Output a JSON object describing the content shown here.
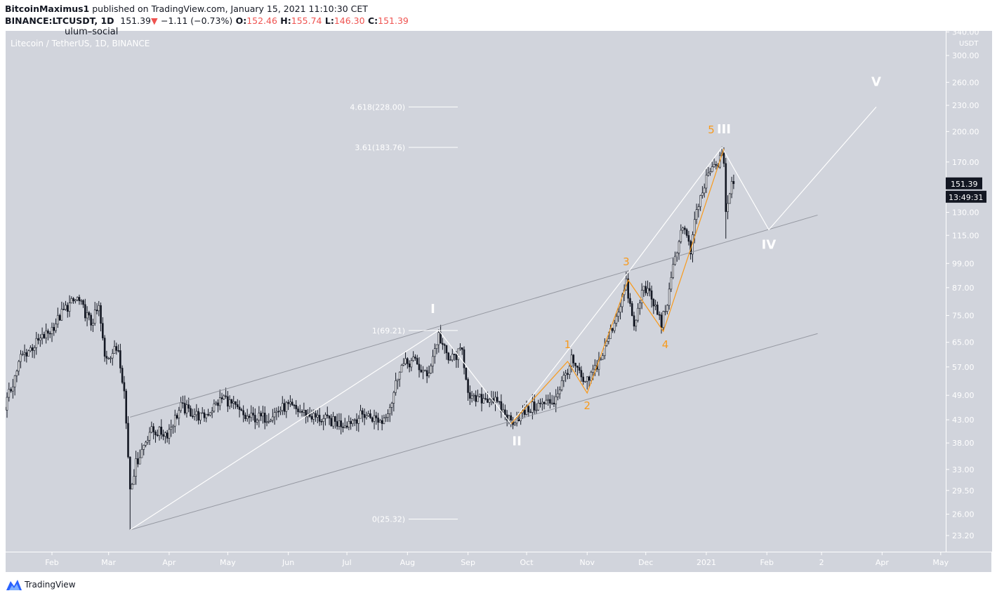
{
  "header": {
    "publisher": "BitcoinMaximus1",
    "published_text": "published on TradingView.com, January 15, 2021 11:10:30 CET",
    "symbol": "BINANCE:LTCUSDT, 1D",
    "last": "151.39",
    "change": "−1.11 (−0.73%)",
    "o_label": "O:",
    "o": "152.46",
    "h_label": "H:",
    "h": "155.74",
    "l_label": "L:",
    "l": "146.30",
    "c_label": "C:",
    "c": "151.39",
    "down_color": "#ef5350"
  },
  "watermark": "ulum–social",
  "chart_subtitle": "Litecoin / TetherUS, 1D, BINANCE",
  "price_axis": {
    "unit": "USDT",
    "ticks": [
      "340.00",
      "300.00",
      "260.00",
      "230.00",
      "200.00",
      "170.00",
      "130.00",
      "115.00",
      "99.00",
      "87.00",
      "75.00",
      "65.00",
      "57.00",
      "49.00",
      "43.00",
      "38.00",
      "33.00",
      "29.50",
      "26.00",
      "23.20"
    ],
    "current_price": "151.39",
    "countdown": "13:49:31"
  },
  "time_axis": {
    "ticks": [
      {
        "label": "Feb",
        "date": "2020-02-01"
      },
      {
        "label": "Mar",
        "date": "2020-03-01"
      },
      {
        "label": "Apr",
        "date": "2020-04-01"
      },
      {
        "label": "May",
        "date": "2020-05-01"
      },
      {
        "label": "Jun",
        "date": "2020-06-01"
      },
      {
        "label": "Jul",
        "date": "2020-07-01"
      },
      {
        "label": "Aug",
        "date": "2020-08-01"
      },
      {
        "label": "Sep",
        "date": "2020-09-01"
      },
      {
        "label": "Oct",
        "date": "2020-10-01"
      },
      {
        "label": "Nov",
        "date": "2020-11-01"
      },
      {
        "label": "Dec",
        "date": "2020-12-01"
      },
      {
        "label": "2021",
        "date": "2021-01-01"
      },
      {
        "label": "Feb",
        "date": "2021-02-01"
      },
      {
        "label": "2",
        "date": "2021-03-01"
      },
      {
        "label": "Apr",
        "date": "2021-04-01"
      },
      {
        "label": "May",
        "date": "2021-05-01"
      }
    ]
  },
  "chart_data": {
    "type": "candlestick",
    "scale": "log",
    "ylim": [
      22,
      345
    ],
    "xlim": [
      "2020-01-08",
      "2021-05-02"
    ],
    "grid": false,
    "up_color": "#ffffff",
    "down_color": "#131722",
    "approx_close_path": [
      [
        "2020-01-08",
        46
      ],
      [
        "2020-01-16",
        60
      ],
      [
        "2020-01-31",
        69
      ],
      [
        "2020-02-08",
        78
      ],
      [
        "2020-02-14",
        82
      ],
      [
        "2020-02-21",
        72
      ],
      [
        "2020-02-25",
        78
      ],
      [
        "2020-02-28",
        60
      ],
      [
        "2020-03-06",
        63
      ],
      [
        "2020-03-09",
        50
      ],
      [
        "2020-03-12",
        30
      ],
      [
        "2020-03-15",
        34
      ],
      [
        "2020-03-22",
        40.5
      ],
      [
        "2020-03-31",
        40
      ],
      [
        "2020-04-07",
        46
      ],
      [
        "2020-04-18",
        43.5
      ],
      [
        "2020-04-29",
        48.5
      ],
      [
        "2020-05-10",
        43.5
      ],
      [
        "2020-05-21",
        43.5
      ],
      [
        "2020-05-31",
        46.3
      ],
      [
        "2020-06-15",
        43.5
      ],
      [
        "2020-06-29",
        42
      ],
      [
        "2020-07-10",
        44.3
      ],
      [
        "2020-07-19",
        42.6
      ],
      [
        "2020-07-24",
        47.6
      ],
      [
        "2020-07-28",
        57
      ],
      [
        "2020-08-04",
        59
      ],
      [
        "2020-08-11",
        54
      ],
      [
        "2020-08-17",
        67.6
      ],
      [
        "2020-08-22",
        59
      ],
      [
        "2020-08-29",
        62
      ],
      [
        "2020-09-02",
        47.6
      ],
      [
        "2020-09-13",
        48.5
      ],
      [
        "2020-09-23",
        42.6
      ],
      [
        "2020-10-04",
        46
      ],
      [
        "2020-10-15",
        47.6
      ],
      [
        "2020-10-24",
        59
      ],
      [
        "2020-10-31",
        51.6
      ],
      [
        "2020-11-09",
        61
      ],
      [
        "2020-11-16",
        75
      ],
      [
        "2020-11-21",
        88.7
      ],
      [
        "2020-11-25",
        70
      ],
      [
        "2020-11-30",
        88.7
      ],
      [
        "2020-12-06",
        78
      ],
      [
        "2020-12-09",
        72
      ],
      [
        "2020-12-13",
        84
      ],
      [
        "2020-12-16",
        103
      ],
      [
        "2020-12-20",
        122
      ],
      [
        "2020-12-24",
        105
      ],
      [
        "2020-12-27",
        131
      ],
      [
        "2021-01-02",
        159
      ],
      [
        "2021-01-09",
        174
      ],
      [
        "2021-01-10",
        172
      ],
      [
        "2021-01-11",
        131
      ],
      [
        "2021-01-14",
        150
      ],
      [
        "2021-01-15",
        151.39
      ]
    ],
    "extreme_wicks": [
      [
        "2020-03-12",
        23.9
      ],
      [
        "2021-01-11",
        113
      ],
      [
        "2021-01-10",
        183.8
      ]
    ],
    "channel": {
      "upper": [
        [
          "2020-03-12",
          43.6
        ],
        [
          "2021-02-27",
          128.1
        ]
      ],
      "lower": [
        [
          "2020-03-12",
          23.9
        ],
        [
          "2021-02-27",
          68.1
        ]
      ],
      "color": "#9598a1"
    },
    "primary_wave": {
      "color": "#ffffff",
      "points": [
        [
          "2020-03-12",
          23.9
        ],
        [
          "2020-08-17",
          69.3
        ],
        [
          "2020-09-23",
          42.1
        ],
        [
          "2020-11-22",
          94.4
        ],
        [
          "2021-01-09",
          183.7
        ],
        [
          "2021-02-02",
          118.5
        ],
        [
          "2021-03-29",
          228
        ]
      ],
      "labels": [
        {
          "text": "I",
          "date": "2020-08-14",
          "price": 76
        },
        {
          "text": "II",
          "date": "2020-09-26",
          "price": 37.5
        },
        {
          "text": "III",
          "date": "2021-01-10",
          "price": 198
        },
        {
          "text": "IV",
          "date": "2021-02-02",
          "price": 107
        },
        {
          "text": "V",
          "date": "2021-03-29",
          "price": 255
        }
      ]
    },
    "sub_wave": {
      "color": "#f89a1c",
      "points": [
        [
          "2020-09-23",
          42.1
        ],
        [
          "2020-10-22",
          58.7
        ],
        [
          "2020-11-01",
          49.6
        ],
        [
          "2020-11-22",
          90.6
        ],
        [
          "2020-12-10",
          68.9
        ],
        [
          "2021-01-10",
          182.4
        ]
      ],
      "labels": [
        {
          "text": "1",
          "date": "2020-10-22",
          "price": 63
        },
        {
          "text": "2",
          "date": "2020-11-01",
          "price": 45.5
        },
        {
          "text": "3",
          "date": "2020-11-21",
          "price": 98
        },
        {
          "text": "4",
          "date": "2020-12-11",
          "price": 63
        },
        {
          "text": "5",
          "date": "2021-01-10",
          "price": 198
        }
      ]
    },
    "fib_levels": [
      {
        "label": "4.618(228.00)",
        "price": 228.0
      },
      {
        "label": "3.61(183.76)",
        "price": 183.76
      },
      {
        "label": "1(69.21)",
        "price": 69.21
      },
      {
        "label": "0(25.32)",
        "price": 25.32
      }
    ]
  },
  "footer": {
    "brand": "TradingView",
    "brand_color": "#2962ff"
  }
}
